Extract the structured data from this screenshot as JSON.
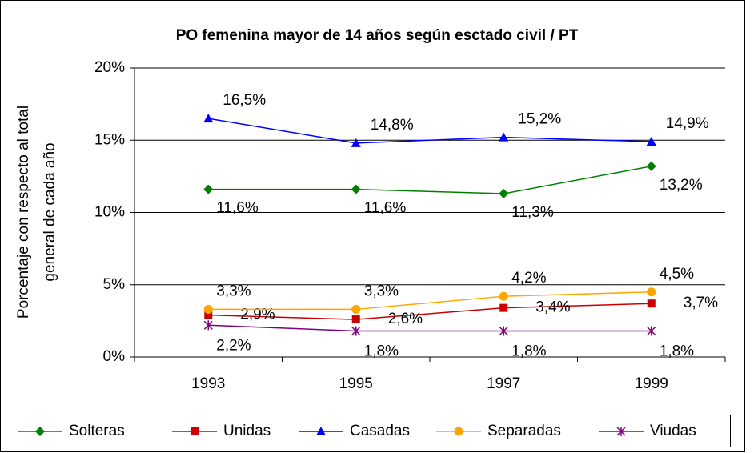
{
  "chart_data": {
    "type": "line",
    "title": "PO femenina mayor de 14 años según esctado civil / PT",
    "y_label": [
      "Porcentaje con respecto al total",
      "general de cada año"
    ],
    "categories": [
      "1993",
      "1995",
      "1997",
      "1999"
    ],
    "ylim": [
      0,
      20
    ],
    "yticks": [
      {
        "value": 0,
        "label": "0%"
      },
      {
        "value": 5,
        "label": "5%"
      },
      {
        "value": 10,
        "label": "10%"
      },
      {
        "value": 15,
        "label": "15%"
      },
      {
        "value": 20,
        "label": "20%"
      }
    ],
    "grid": true,
    "legend": "bottom",
    "series": [
      {
        "name": "Solteras",
        "color": "#008000",
        "marker": "diamond",
        "values": [
          11.6,
          11.6,
          11.3,
          13.2
        ],
        "value_labels": [
          "11,6%",
          "11,6%",
          "11,3%",
          "13,2%"
        ]
      },
      {
        "name": "Unidas",
        "color": "#cc0000",
        "marker": "square",
        "values": [
          2.9,
          2.6,
          3.4,
          3.7
        ],
        "value_labels": [
          "2,9%",
          "2,6%",
          "3,4%",
          "3,7%"
        ]
      },
      {
        "name": "Casadas",
        "color": "#0000ff",
        "marker": "triangle",
        "values": [
          16.5,
          14.8,
          15.2,
          14.9
        ],
        "value_labels": [
          "16,5%",
          "14,8%",
          "15,2%",
          "14,9%"
        ]
      },
      {
        "name": "Separadas",
        "color": "#ffa500",
        "marker": "circle",
        "values": [
          3.3,
          3.3,
          4.2,
          4.5
        ],
        "value_labels": [
          "3,3%",
          "3,3%",
          "4,2%",
          "4,5%"
        ]
      },
      {
        "name": "Viudas",
        "color": "#800080",
        "marker": "star",
        "values": [
          2.2,
          1.8,
          1.8,
          1.8
        ],
        "value_labels": [
          "2,2%",
          "1,8%",
          "1,8%",
          "1,8%"
        ]
      }
    ]
  }
}
